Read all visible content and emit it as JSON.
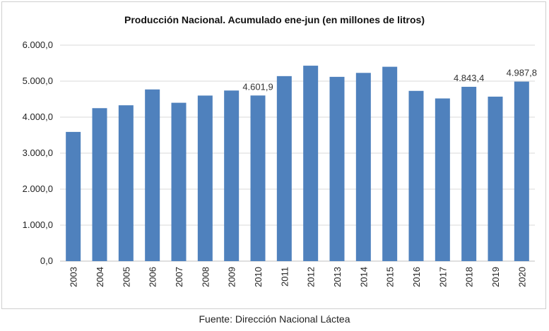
{
  "chart_data": {
    "type": "bar",
    "title": "Producción Nacional. Acumulado ene-jun (en millones de litros)",
    "source": "Fuente: Dirección Nacional Láctea",
    "categories": [
      "2003",
      "2004",
      "2005",
      "2006",
      "2007",
      "2008",
      "2009",
      "2010",
      "2011",
      "2012",
      "2013",
      "2014",
      "2015",
      "2016",
      "2017",
      "2018",
      "2019",
      "2020"
    ],
    "values": [
      3590,
      4250,
      4330,
      4770,
      4400,
      4600,
      4740,
      4601.9,
      5140,
      5430,
      5120,
      5230,
      5400,
      4730,
      4520,
      4843.4,
      4570,
      4987.8
    ],
    "y_ticks": [
      "0,0",
      "1.000,0",
      "2.000,0",
      "3.000,0",
      "4.000,0",
      "5.000,0",
      "6.000,0"
    ],
    "ylim": [
      0,
      6000
    ],
    "data_labels": [
      {
        "category": "2010",
        "text": "4.601,9"
      },
      {
        "category": "2018",
        "text": "4.843,4"
      },
      {
        "category": "2020",
        "text": "4.987,8"
      }
    ],
    "bar_color": "#4f81bd",
    "grid": true
  }
}
